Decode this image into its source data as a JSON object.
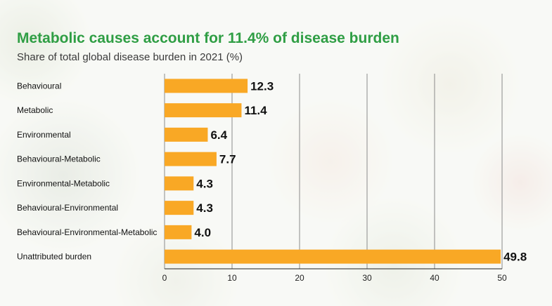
{
  "chart_data": {
    "type": "bar",
    "orientation": "horizontal",
    "title": "Metabolic causes account for 11.4% of disease burden",
    "subtitle": "Share of total global disease burden in 2021 (%)",
    "categories": [
      "Behavioural",
      "Metabolic",
      "Environmental",
      "Behavioural-Metabolic",
      "Environmental-Metabolic",
      "Behavioural-Environmental",
      "Behavioural-Environmental-Metabolic",
      "Unattributed burden"
    ],
    "values": [
      12.3,
      11.4,
      6.4,
      7.7,
      4.3,
      4.3,
      4.0,
      49.8
    ],
    "value_labels": [
      "12.3",
      "11.4",
      "6.4",
      "7.7",
      "4.3",
      "4.3",
      "4.0",
      "49.8"
    ],
    "xlim": [
      0,
      50
    ],
    "xticks": [
      0,
      10,
      20,
      30,
      40,
      50
    ],
    "grid": "vertical",
    "bar_color": "#f9a825",
    "title_color": "#2f9e44"
  }
}
